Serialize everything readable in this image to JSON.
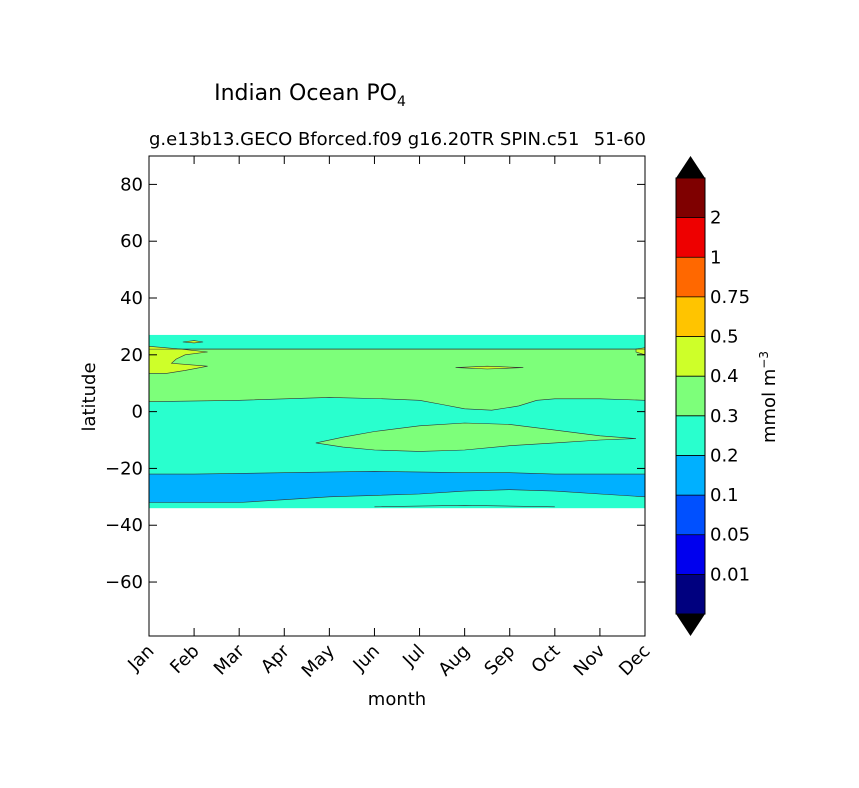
{
  "figure": {
    "title": "Indian Ocean PO",
    "title_subscript": "4",
    "subtitle_left": "g.e13b13.GECO Bforced.f09 g16.20TR SPIN.c51",
    "subtitle_right": "51-60"
  },
  "chart_data": {
    "type": "heatmap",
    "subtype": "filled-contour",
    "xlabel": "month",
    "ylabel": "latitude",
    "x_categories": [
      "Jan",
      "Feb",
      "Mar",
      "Apr",
      "May",
      "Jun",
      "Jul",
      "Aug",
      "Sep",
      "Oct",
      "Nov",
      "Dec"
    ],
    "ylim": [
      -79,
      90
    ],
    "yticks": [
      80,
      60,
      40,
      20,
      0,
      -20,
      -40,
      -60
    ],
    "ytick_labels": [
      "80",
      "60",
      "40",
      "20",
      "0",
      "−20",
      "−40",
      "−60"
    ],
    "data_extent_lat": [
      -34,
      27
    ],
    "colorbar": {
      "label": "mmol m",
      "label_superscript": "−3",
      "levels": [
        "0.01",
        "0.05",
        "0.1",
        "0.2",
        "0.3",
        "0.4",
        "0.5",
        "0.75",
        "1",
        "2"
      ],
      "colors": [
        "#00007f",
        "#0000ee",
        "#0050ff",
        "#00b0ff",
        "#29ffce",
        "#7dff7a",
        "#ceff29",
        "#ffc400",
        "#ff6800",
        "#ee0000",
        "#7f0000"
      ],
      "extend_colors": {
        "under": "#000000",
        "over": "#000000"
      }
    },
    "regions": [
      {
        "value_range": "0.1-0.2",
        "color": "#00b0ff",
        "points": [
          [
            0,
            -32
          ],
          [
            2,
            -32
          ],
          [
            3,
            -31
          ],
          [
            4,
            -30
          ],
          [
            5,
            -29.5
          ],
          [
            6,
            -29
          ],
          [
            7,
            -28
          ],
          [
            8,
            -27.5
          ],
          [
            9,
            -28
          ],
          [
            10,
            -29
          ],
          [
            11,
            -30
          ],
          [
            11,
            -22
          ],
          [
            9,
            -22
          ],
          [
            8,
            -21.5
          ],
          [
            7,
            -21.5
          ],
          [
            5,
            -21
          ],
          [
            3,
            -21.5
          ],
          [
            1,
            -22
          ],
          [
            0,
            -22
          ]
        ]
      },
      {
        "value_range": "0.3-0.4",
        "color": "#7dff7a",
        "points": [
          [
            0,
            22
          ],
          [
            11,
            22
          ],
          [
            11,
            4
          ],
          [
            10,
            4.5
          ],
          [
            9,
            4.5
          ],
          [
            8.6,
            4
          ],
          [
            8.2,
            2
          ],
          [
            8,
            1.5
          ],
          [
            7.6,
            0.5
          ],
          [
            7,
            1
          ],
          [
            6.5,
            2.5
          ],
          [
            6,
            4
          ],
          [
            5.2,
            4.5
          ],
          [
            4,
            5
          ],
          [
            2,
            4
          ],
          [
            0,
            3.5
          ]
        ]
      },
      {
        "value_range": "0.3-0.4",
        "color": "#7dff7a",
        "points": [
          [
            3.7,
            -11
          ],
          [
            4.3,
            -9
          ],
          [
            5,
            -7
          ],
          [
            6,
            -5
          ],
          [
            7,
            -4
          ],
          [
            8,
            -4.5
          ],
          [
            9,
            -6.5
          ],
          [
            10,
            -8.5
          ],
          [
            10.8,
            -9.5
          ],
          [
            10,
            -10
          ],
          [
            9,
            -11
          ],
          [
            8,
            -12
          ],
          [
            7,
            -13.5
          ],
          [
            6,
            -14
          ],
          [
            5,
            -13.5
          ],
          [
            4.3,
            -12.5
          ]
        ]
      },
      {
        "value_range": "0.4-0.5",
        "color": "#ceff29",
        "points": [
          [
            0,
            23
          ],
          [
            0.7,
            22
          ],
          [
            1.3,
            21
          ],
          [
            0.8,
            20
          ],
          [
            0.6,
            18.5
          ],
          [
            0.5,
            17
          ],
          [
            1.3,
            16
          ],
          [
            0.8,
            14.5
          ],
          [
            0.4,
            13.5
          ],
          [
            0,
            13.5
          ]
        ]
      },
      {
        "value_range": "0.4-0.5",
        "color": "#ceff29",
        "points": [
          [
            6.8,
            15.5
          ],
          [
            7.5,
            16
          ],
          [
            8.3,
            15.5
          ],
          [
            7.5,
            15
          ]
        ]
      },
      {
        "value_range": "0.4-0.5",
        "color": "#ceff29",
        "points": [
          [
            10.8,
            22
          ],
          [
            11,
            22.5
          ],
          [
            11,
            20
          ],
          [
            10.8,
            21
          ]
        ]
      },
      {
        "value_range": "0.4-0.5",
        "color": "#ceff29",
        "points": [
          [
            0.75,
            24.5
          ],
          [
            1.0,
            25
          ],
          [
            1.2,
            24.5
          ],
          [
            1.0,
            24.2
          ]
        ]
      }
    ]
  }
}
